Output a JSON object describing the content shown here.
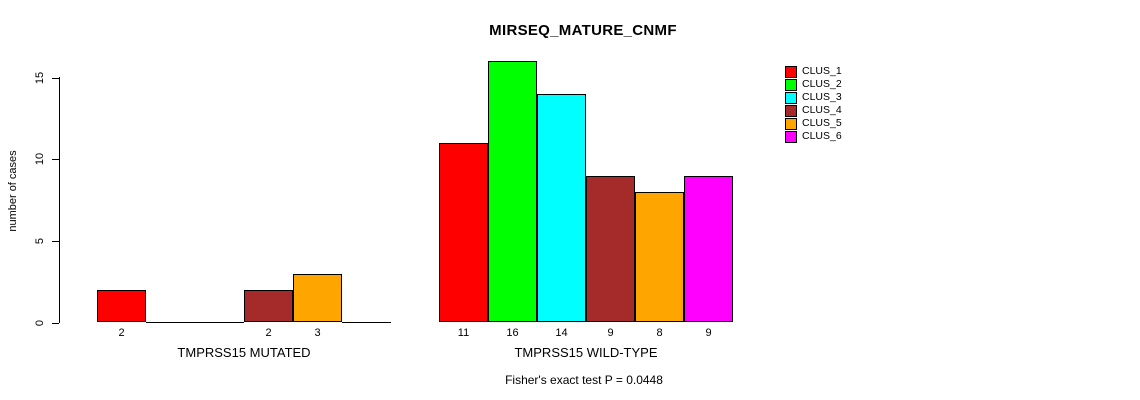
{
  "chart_data": {
    "type": "bar",
    "title": "MIRSEQ_MATURE_CNMF",
    "ylabel": "number of cases",
    "ylim": [
      0,
      15
    ],
    "yticks": [
      0,
      5,
      10,
      15
    ],
    "grid": false,
    "legend_position": "topright",
    "series": [
      "CLUS_1",
      "CLUS_2",
      "CLUS_3",
      "CLUS_4",
      "CLUS_5",
      "CLUS_6"
    ],
    "colors": [
      "#FF0000",
      "#00FF00",
      "#00FFFF",
      "#A52A2A",
      "#FFA500",
      "#FF00FF"
    ],
    "groups": [
      {
        "label": "TMPRSS15 MUTATED",
        "values": [
          2,
          0,
          0,
          2,
          3,
          0
        ]
      },
      {
        "label": "TMPRSS15 WILD-TYPE",
        "values": [
          11,
          16,
          14,
          9,
          8,
          9
        ]
      }
    ],
    "annotation": "Fisher's exact test P = 0.0448"
  }
}
